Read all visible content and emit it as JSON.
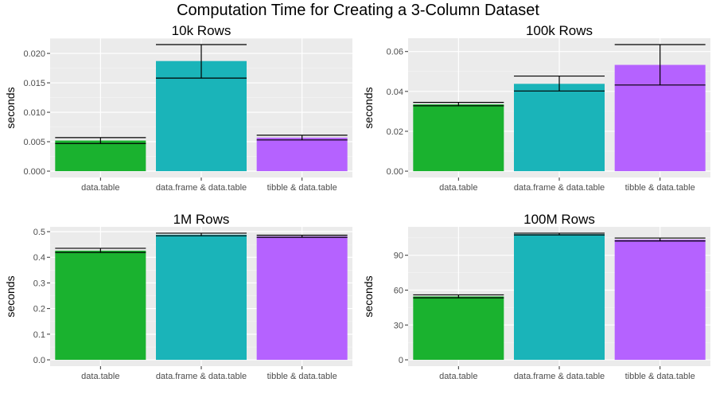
{
  "title": "Computation Time for Creating a 3-Column Dataset",
  "colors": {
    "panel_bg": "#ebebeb",
    "grid_major": "#ffffff",
    "errorbar": "#000000"
  },
  "chart_data": [
    {
      "type": "bar",
      "title": "10k Rows",
      "ylabel": "seconds",
      "xlabel": "",
      "categories": [
        "data.table",
        "data.frame & data.table",
        "tibble & data.table"
      ],
      "colors": [
        "#1ab22f",
        "#1ab4b9",
        "#b562ff"
      ],
      "values": [
        0.0052,
        0.0187,
        0.0057
      ],
      "error_low": [
        0.0047,
        0.0158,
        0.0053
      ],
      "error_high": [
        0.0057,
        0.0215,
        0.0061
      ],
      "yticks": [
        0,
        0.005,
        0.01,
        0.015,
        0.02
      ],
      "ytick_labels": [
        "0.000",
        "0.005",
        "0.010",
        "0.015",
        "0.020"
      ],
      "ylim": [
        -0.00108,
        0.02258
      ],
      "grid": true
    },
    {
      "type": "bar",
      "title": "100k Rows",
      "ylabel": "seconds",
      "xlabel": "",
      "categories": [
        "data.table",
        "data.frame & data.table",
        "tibble & data.table"
      ],
      "colors": [
        "#1ab22f",
        "#1ab4b9",
        "#b562ff"
      ],
      "values": [
        0.0335,
        0.0438,
        0.0533
      ],
      "error_low": [
        0.0328,
        0.0402,
        0.0432
      ],
      "error_high": [
        0.0345,
        0.0477,
        0.0635
      ],
      "yticks": [
        0,
        0.02,
        0.04,
        0.06
      ],
      "ytick_labels": [
        "0.00",
        "0.02",
        "0.04",
        "0.06"
      ],
      "ylim": [
        -0.00318,
        0.06668
      ],
      "grid": true
    },
    {
      "type": "bar",
      "title": "1M Rows",
      "ylabel": "seconds",
      "xlabel": "",
      "categories": [
        "data.table",
        "data.frame & data.table",
        "tibble & data.table"
      ],
      "colors": [
        "#1ab22f",
        "#1ab4b9",
        "#b562ff"
      ],
      "values": [
        0.426,
        0.488,
        0.482
      ],
      "error_low": [
        0.419,
        0.484,
        0.478
      ],
      "error_high": [
        0.435,
        0.494,
        0.486
      ],
      "yticks": [
        0,
        0.1,
        0.2,
        0.3,
        0.4,
        0.5
      ],
      "ytick_labels": [
        "0.0",
        "0.1",
        "0.2",
        "0.3",
        "0.4",
        "0.5"
      ],
      "ylim": [
        -0.0247,
        0.5187
      ],
      "grid": true
    },
    {
      "type": "bar",
      "title": "100M Rows",
      "ylabel": "seconds",
      "xlabel": "",
      "categories": [
        "data.table",
        "data.frame & data.table",
        "tibble & data.table"
      ],
      "colors": [
        "#1ab22f",
        "#1ab4b9",
        "#b562ff"
      ],
      "values": [
        54.6,
        108.2,
        103.5
      ],
      "error_low": [
        53.4,
        107.5,
        102.3
      ],
      "error_high": [
        55.9,
        109.0,
        104.8
      ],
      "yticks": [
        0,
        30,
        60,
        90
      ],
      "ytick_labels": [
        "0",
        "30",
        "60",
        "90"
      ],
      "ylim": [
        -5.45,
        114.45
      ],
      "grid": true
    }
  ]
}
